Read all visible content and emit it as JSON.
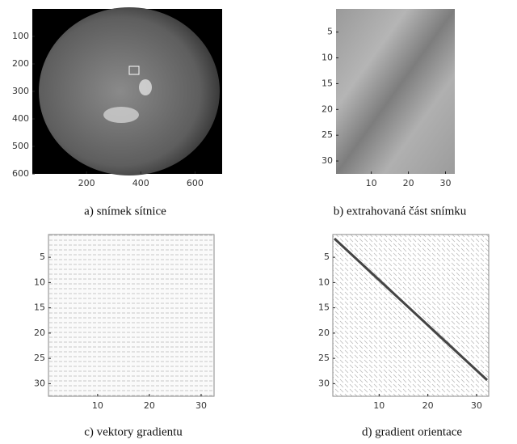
{
  "panels": [
    {
      "caption": "a) snímek sítnice",
      "xlim": [
        0,
        700
      ],
      "ylim": [
        0,
        600
      ],
      "xticks": [
        200,
        400,
        600
      ],
      "yticks": [
        100,
        200,
        300,
        400,
        500,
        600
      ]
    },
    {
      "caption": "b) extrahovaná část snímku",
      "xlim": [
        0.5,
        32.5
      ],
      "ylim": [
        0.5,
        32.5
      ],
      "xticks": [
        10,
        20,
        30
      ],
      "yticks": [
        5,
        10,
        15,
        20,
        25,
        30
      ]
    },
    {
      "caption": "c) vektory gradientu",
      "xlim": [
        0.5,
        32.5
      ],
      "ylim": [
        0.5,
        32.5
      ],
      "xticks": [
        10,
        20,
        30
      ],
      "yticks": [
        5,
        10,
        15,
        20,
        25,
        30
      ]
    },
    {
      "caption": "d) gradient orientace",
      "xlim": [
        0.5,
        32.5
      ],
      "ylim": [
        0.5,
        32.5
      ],
      "xticks": [
        10,
        20,
        30
      ],
      "yticks": [
        5,
        10,
        15,
        20,
        25,
        30
      ]
    }
  ]
}
